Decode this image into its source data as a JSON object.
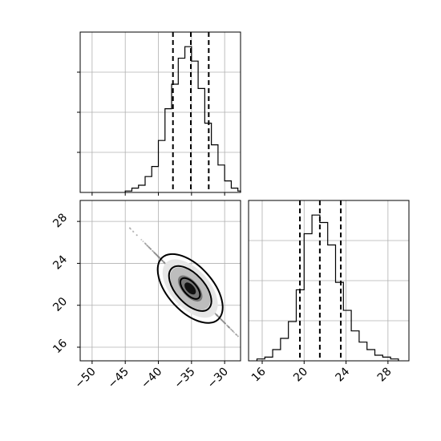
{
  "chart_data": [
    {
      "type": "histogram",
      "panel": "top-left",
      "x_ticks": [
        "−50",
        "−45",
        "−40",
        "−35",
        "−30"
      ],
      "x_tick_values": [
        -50,
        -45,
        -40,
        -35,
        -30
      ],
      "xlim": [
        -51.8,
        -27.6
      ],
      "x_tick_labels_visible": false,
      "y_tick_labels_visible": false,
      "bins": [
        -45,
        -44,
        -43,
        -42,
        -41,
        -40,
        -39,
        -38,
        -37,
        -36,
        -35,
        -34,
        -33,
        -32,
        -31,
        -30,
        -29,
        -28,
        -27.6
      ],
      "counts": [
        1,
        3,
        5,
        11,
        18,
        36,
        58,
        75,
        93,
        101,
        91,
        72,
        48,
        33,
        19,
        8,
        3,
        1
      ],
      "quantiles": [
        -37.8,
        -35.1,
        -32.4
      ],
      "grid": true
    },
    {
      "type": "histogram",
      "panel": "bottom-right",
      "x_ticks": [
        "16",
        "20",
        "24",
        "28"
      ],
      "x_tick_values": [
        16,
        20,
        24,
        28
      ],
      "xlim": [
        14.7,
        30.0
      ],
      "y_tick_labels_visible": false,
      "bins": [
        15.5,
        16.25,
        17,
        17.75,
        18.5,
        19.25,
        20,
        20.75,
        21.5,
        22.25,
        23,
        23.75,
        24.5,
        25.25,
        26,
        26.75,
        27.5,
        28.25,
        29
      ],
      "counts": [
        1,
        2,
        6,
        12,
        21,
        38,
        68,
        78,
        74,
        62,
        42,
        27,
        16,
        10,
        6,
        3,
        2,
        1
      ],
      "quantiles": [
        19.6,
        21.5,
        23.5
      ],
      "grid": true
    },
    {
      "type": "scatter",
      "panel": "bottom-left",
      "x_ticks": [
        "−50",
        "−45",
        "−40",
        "−35",
        "−30"
      ],
      "x_tick_values": [
        -50,
        -45,
        -40,
        -35,
        -30
      ],
      "y_ticks": [
        "16",
        "20",
        "24",
        "28"
      ],
      "y_tick_values": [
        16,
        20,
        24,
        28
      ],
      "xlim": [
        -51.8,
        -27.6
      ],
      "ylim": [
        14.7,
        30.0
      ],
      "center": [
        -35.2,
        21.6
      ],
      "contour_levels": [
        "inner",
        "middle",
        "outer"
      ],
      "grid": true
    }
  ]
}
